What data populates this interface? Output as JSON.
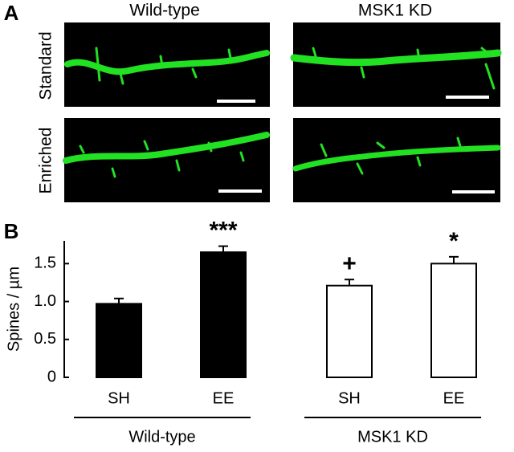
{
  "panel_a": {
    "label": "A",
    "columns": [
      "Wild-type",
      "MSK1 KD"
    ],
    "rows": [
      "Standard",
      "Enriched"
    ]
  },
  "chart_data": {
    "type": "bar",
    "panel_label": "B",
    "ylabel": "Spines / µm",
    "categories": [
      "SH",
      "EE"
    ],
    "series": [
      {
        "name": "Wild-type",
        "color": "#000000",
        "values": [
          0.97,
          1.65
        ],
        "errors": [
          0.07,
          0.08
        ],
        "significance": [
          null,
          "***"
        ]
      },
      {
        "name": "MSK1 KD",
        "color": "#ffffff",
        "values": [
          1.21,
          1.5
        ],
        "errors": [
          0.08,
          0.09
        ],
        "significance": [
          "+",
          "*"
        ]
      }
    ],
    "ylim": [
      0,
      1.8
    ],
    "yticks": [
      0,
      0.5,
      {
        "value": 1,
        "label": "1.0"
      },
      1.5
    ]
  }
}
